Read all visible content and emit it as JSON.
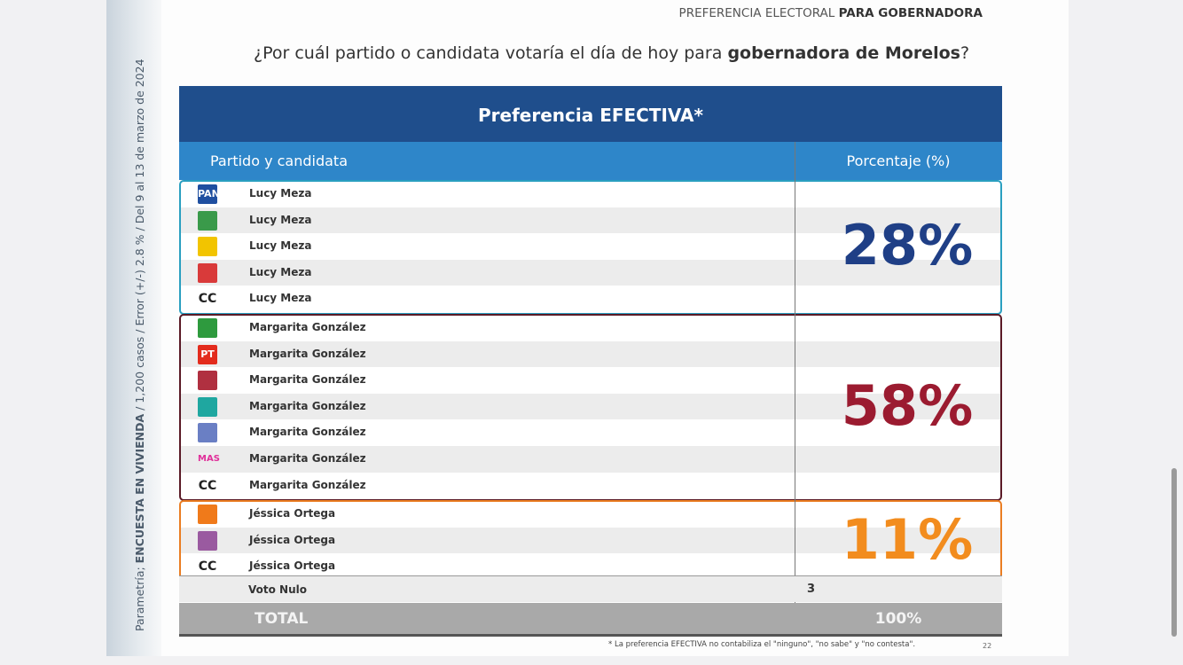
{
  "header": {
    "prefix": "PREFERENCIA ELECTORAL ",
    "emphasis": "PARA GOBERNADORA"
  },
  "question": {
    "text": "¿Por cuál partido o candidata votaría el día de hoy para ",
    "emphasis": "gobernadora de Morelos",
    "end": "?"
  },
  "side_note": {
    "prefix": "Parametría; ",
    "emphasis": "ENCUESTA EN VIVIENDA",
    "rest": " / 1,200 casos / Error (+/-) 2.8 % / Del 9 al 13 de marzo de 2024"
  },
  "table": {
    "title": "Preferencia EFECTIVA*",
    "columns": [
      "Partido y candidata",
      "Porcentaje (%)"
    ],
    "groups": [
      {
        "percent": "28%",
        "color": "#1f3f86",
        "border": "#2a9fc0",
        "rows": [
          {
            "logo": "PAN",
            "logo_color": "#1f4fa0",
            "candidate": "Lucy Meza"
          },
          {
            "logo_color": "#3a9a4a",
            "candidate": "Lucy Meza"
          },
          {
            "logo_color": "#f2c400",
            "candidate": "Lucy Meza"
          },
          {
            "logo_color": "#d93a3a",
            "candidate": "Lucy Meza"
          },
          {
            "logo": "CC",
            "candidate": "Lucy Meza"
          }
        ]
      },
      {
        "percent": "58%",
        "color": "#9b1b30",
        "border": "#5a1a26",
        "rows": [
          {
            "logo_color": "#2e9a3e",
            "candidate": "Margarita González"
          },
          {
            "logo": "PT",
            "logo_color": "#e32b1c",
            "candidate": "Margarita González"
          },
          {
            "logo_color": "#b03040",
            "candidate": "Margarita González"
          },
          {
            "logo_color": "#1fa7a0",
            "candidate": "Margarita González"
          },
          {
            "logo_color": "#6a7fc4",
            "candidate": "Margarita González"
          },
          {
            "logo": "MAS",
            "candidate": "Margarita González"
          },
          {
            "logo": "CC",
            "candidate": "Margarita González"
          }
        ]
      },
      {
        "percent": "11%",
        "color": "#f28c1e",
        "border": "#ea7d22",
        "rows": [
          {
            "logo_color": "#f07a1a",
            "candidate": "Jéssica Ortega"
          },
          {
            "logo_color": "#9a5aa0",
            "candidate": "Jéssica Ortega"
          },
          {
            "logo": "CC",
            "candidate": "Jéssica Ortega"
          }
        ]
      }
    ],
    "null_vote": {
      "label": "Voto Nulo",
      "value": "3"
    },
    "total": {
      "label": "TOTAL",
      "value": "100%"
    }
  },
  "footnote": "* La preferencia EFECTIVA no contabiliza el \"ninguno\", \"no sabe\" y \"no contesta\".",
  "page_number": "22"
}
